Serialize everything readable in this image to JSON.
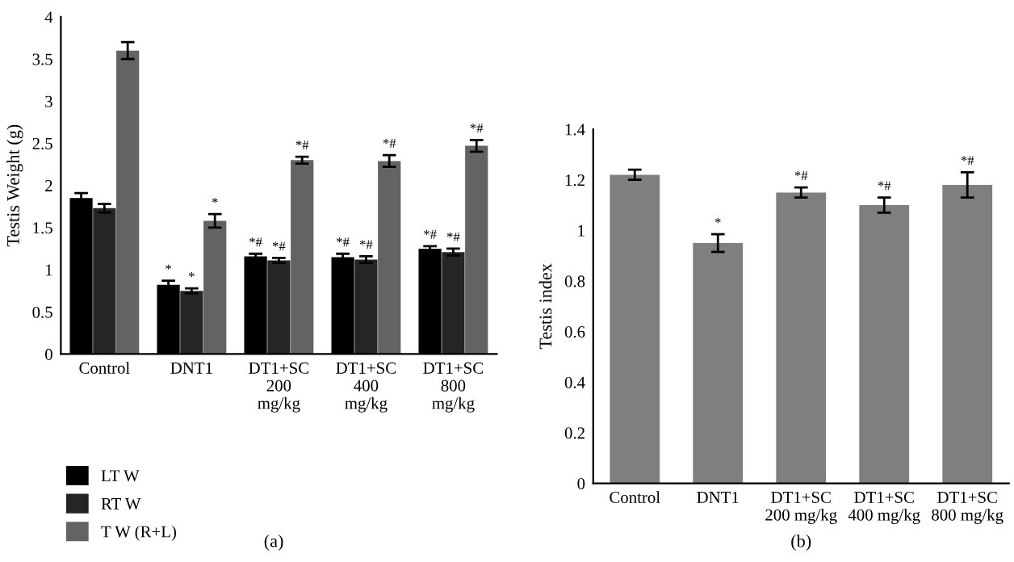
{
  "chart_data": [
    {
      "type": "bar",
      "ylabel": "Testis Weight (g)",
      "categories": [
        "Control",
        "DNT1",
        "DT1+SC\n200\nmg/kg",
        "DT1+SC\n400\nmg/kg",
        "DT1+SC\n800\nmg/kg"
      ],
      "series": [
        {
          "name": "LT W",
          "color": "#000000",
          "values": [
            1.85,
            0.82,
            1.16,
            1.15,
            1.25
          ],
          "errors": [
            0.06,
            0.05,
            0.03,
            0.04,
            0.03
          ],
          "value_labels": [
            null,
            "*",
            "*#",
            "*#",
            "*#"
          ]
        },
        {
          "name": "RT W",
          "color": "#252525",
          "values": [
            1.73,
            0.75,
            1.11,
            1.12,
            1.21
          ],
          "errors": [
            0.05,
            0.03,
            0.03,
            0.04,
            0.04
          ],
          "value_labels": [
            null,
            "*",
            "*#",
            "*#",
            "*#"
          ]
        },
        {
          "name": "T W (R+L)",
          "color": "#636363",
          "values": [
            3.6,
            1.58,
            2.3,
            2.29,
            2.47
          ],
          "errors": [
            0.1,
            0.08,
            0.04,
            0.07,
            0.07
          ],
          "value_labels": [
            null,
            "*",
            "*#",
            "*#",
            "*#"
          ]
        }
      ],
      "ylim": [
        0,
        4
      ],
      "yticks": [
        0,
        0.5,
        1,
        1.5,
        2,
        2.5,
        3,
        3.5,
        4
      ],
      "grid": false,
      "legend": "bottom left",
      "annotations": [
        "(a)"
      ]
    },
    {
      "type": "bar",
      "ylabel": "Testis index",
      "categories": [
        "Control",
        "DNT1",
        "DT1+SC\n200 mg/kg",
        "DT1+SC\n400 mg/kg",
        "DT1+SC\n800 mg/kg"
      ],
      "series": [
        {
          "color": "#7f7f7f",
          "values": [
            1.22,
            0.95,
            1.15,
            1.1,
            1.18
          ],
          "errors": [
            0.02,
            0.035,
            0.02,
            0.03,
            0.05
          ],
          "value_labels": [
            null,
            "*",
            "*#",
            "*#",
            "*#"
          ]
        }
      ],
      "ylim": [
        0,
        1.4
      ],
      "yticks": [
        0,
        0.2,
        0.4,
        0.6,
        0.8,
        1,
        1.2,
        1.4
      ],
      "grid": false,
      "annotations": [
        "(b)"
      ]
    }
  ]
}
